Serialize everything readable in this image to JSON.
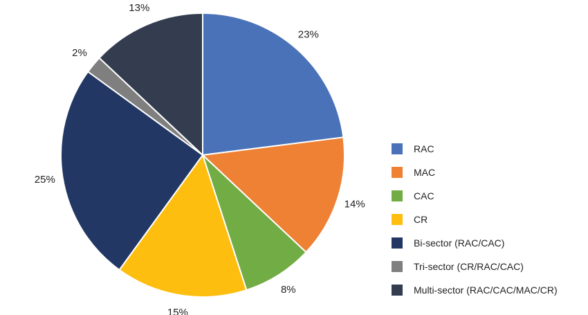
{
  "chart_data": {
    "type": "pie",
    "title": "",
    "legend_position": "right",
    "slice_order": "clockwise from top",
    "data_labels_unit": "%",
    "series": [
      {
        "name": "RAC",
        "value": 23,
        "label": "23%",
        "color": "#4A72B8"
      },
      {
        "name": "MAC",
        "value": 14,
        "label": "14%",
        "color": "#EE8133"
      },
      {
        "name": "CAC",
        "value": 8,
        "label": "8%",
        "color": "#71AC45"
      },
      {
        "name": "CR",
        "value": 15,
        "label": "15%",
        "color": "#FDBE10"
      },
      {
        "name": "Bi-sector (RAC/CAC)",
        "value": 25,
        "label": "25%",
        "color": "#223764"
      },
      {
        "name": "Tri-sector (CR/RAC/CAC)",
        "value": 2,
        "label": "2%",
        "color": "#7F7F7F"
      },
      {
        "name": "Multi-sector (RAC/CAC/MAC/CR)",
        "value": 13,
        "label": "13%",
        "color": "#333D4F"
      }
    ]
  }
}
